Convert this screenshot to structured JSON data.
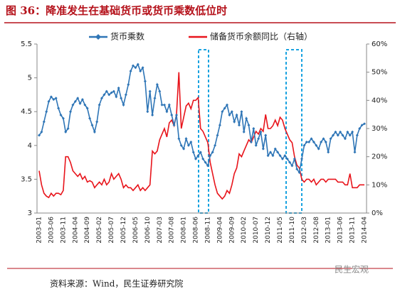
{
  "chart_data": {
    "type": "line",
    "title": "图 36：降准发生在基础货币或货币乘数低位时",
    "source": "资料来源：Wind，民生证券研究院",
    "watermark": "民生宏观",
    "categories": [
      "2003-01",
      null,
      null,
      null,
      null,
      "2003-06",
      null,
      null,
      null,
      null,
      "2003-11",
      null,
      null,
      null,
      null,
      "2004-04",
      null,
      null,
      null,
      null,
      "2004-09",
      null,
      null,
      null,
      null,
      "2005-02",
      null,
      null,
      null,
      null,
      "2005-07",
      null,
      null,
      null,
      null,
      "2005-12",
      null,
      null,
      null,
      null,
      "2006-05",
      null,
      null,
      null,
      null,
      "2006-10",
      null,
      null,
      null,
      null,
      "2007-03",
      null,
      null,
      null,
      null,
      "2007-08",
      null,
      null,
      null,
      null,
      "2008-01",
      null,
      null,
      null,
      null,
      "2008-06",
      null,
      null,
      null,
      null,
      "2008-11",
      null,
      null,
      null,
      null,
      "2009-04",
      null,
      null,
      null,
      null,
      "2009-09",
      null,
      null,
      null,
      null,
      "2010-02",
      null,
      null,
      null,
      null,
      "2010-07",
      null,
      null,
      null,
      null,
      "2010-12",
      null,
      null,
      null,
      null,
      "2011-05",
      null,
      null,
      null,
      null,
      "2011-10",
      null,
      null,
      null,
      null,
      "2012-03",
      null,
      null,
      null,
      null,
      "2012-08",
      null,
      null,
      null,
      null,
      "2013-01",
      null,
      null,
      null,
      null,
      "2013-06",
      null,
      null,
      null,
      null,
      "2013-11",
      null,
      null,
      null,
      null,
      "2014-04"
    ],
    "series": [
      {
        "name": "货币乘数",
        "color": "#2e75b6",
        "values": [
          4.15,
          4.2,
          4.35,
          4.5,
          4.65,
          4.72,
          4.68,
          4.7,
          4.55,
          4.45,
          4.4,
          4.2,
          4.25,
          4.5,
          4.6,
          4.65,
          4.7,
          4.62,
          4.68,
          4.6,
          4.55,
          4.4,
          4.3,
          4.2,
          4.35,
          4.6,
          4.7,
          4.75,
          4.8,
          4.75,
          4.78,
          4.8,
          4.72,
          4.85,
          4.7,
          4.6,
          4.75,
          4.9,
          5.1,
          5.18,
          5.15,
          5.2,
          5.1,
          5.15,
          4.95,
          4.5,
          4.8,
          4.45,
          4.7,
          4.9,
          4.8,
          4.6,
          4.6,
          4.5,
          4.6,
          4.45,
          4.3,
          4.45,
          4.1,
          4.0,
          3.95,
          4.1,
          4.0,
          4.05,
          3.9,
          3.8,
          3.85,
          3.9,
          3.8,
          3.75,
          3.7,
          3.85,
          3.9,
          4.0,
          4.15,
          4.3,
          4.5,
          4.55,
          4.6,
          4.45,
          4.5,
          4.35,
          4.45,
          4.3,
          4.5,
          4.2,
          4.4,
          4.3,
          4.05,
          4.25,
          4.0,
          4.1,
          4.2,
          3.95,
          4.15,
          3.85,
          3.9,
          3.85,
          3.95,
          3.9,
          3.85,
          3.8,
          3.85,
          3.8,
          3.75,
          3.7,
          3.8,
          3.65,
          3.6,
          3.8,
          4.0,
          4.05,
          4.05,
          4.1,
          4.05,
          4.0,
          3.95,
          4.05,
          4.1,
          4.05,
          3.9,
          4.1,
          4.15,
          4.2,
          4.15,
          4.2,
          4.15,
          4.1,
          4.2,
          4.15,
          4.2,
          3.9,
          4.15,
          4.25,
          4.3,
          4.32
        ]
      },
      {
        "name": "储备货币余额同比（右轴）",
        "color": "#e8141b",
        "axis": "y2",
        "values": [
          15,
          10,
          7,
          6,
          5.5,
          7,
          6,
          7,
          7,
          6.5,
          8,
          20,
          20,
          18,
          15,
          14,
          13,
          14,
          12,
          13,
          11,
          11.5,
          11,
          9,
          10,
          11,
          10,
          12,
          10,
          11,
          14,
          12,
          13,
          14,
          12,
          9,
          10,
          9,
          9,
          8,
          9,
          10,
          8,
          9,
          8,
          9,
          10,
          22,
          21,
          22,
          26,
          28,
          30,
          27,
          32,
          33,
          31,
          35,
          50,
          30,
          34,
          38,
          39,
          37,
          40,
          40,
          41,
          30,
          29,
          27,
          25,
          18,
          14,
          10,
          7,
          6,
          5,
          6,
          8,
          7,
          10,
          14,
          16,
          21,
          20,
          22,
          24,
          26,
          25,
          27,
          29,
          28,
          30,
          29,
          35,
          30,
          30,
          31,
          33,
          31,
          34,
          33,
          30,
          28,
          26,
          25,
          20,
          17,
          16,
          12,
          11,
          12,
          12,
          11,
          12,
          10,
          11,
          12,
          12,
          11,
          12,
          12,
          12,
          12,
          11,
          11,
          11,
          10,
          10,
          14,
          9,
          9,
          9,
          10,
          10,
          10
        ]
      }
    ],
    "ylim": [
      3,
      5.5
    ],
    "yticks": [
      3,
      3.5,
      4,
      4.5,
      5,
      5.5
    ],
    "y2lim": [
      0,
      60
    ],
    "y2ticks": [
      {
        "value": 0,
        "label": "0%"
      },
      {
        "value": 10,
        "label": "10%"
      },
      {
        "value": 20,
        "label": "20%"
      },
      {
        "value": 30,
        "label": "30%"
      },
      {
        "value": 40,
        "label": "40%"
      },
      {
        "value": 50,
        "label": "50%"
      },
      {
        "value": 60,
        "label": "60%"
      }
    ]
  }
}
